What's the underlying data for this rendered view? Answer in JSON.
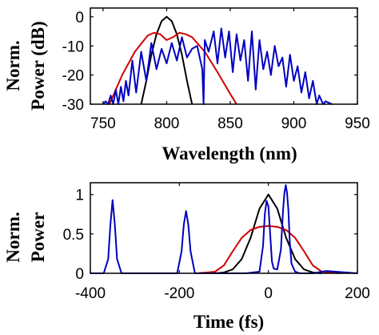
{
  "chart_data": [
    {
      "type": "line",
      "xlabel": "Wavelength (nm)",
      "ylabel_lines": [
        "Norm.",
        "Power (dB)"
      ],
      "xlim": [
        740,
        950
      ],
      "ylim": [
        -30,
        3
      ],
      "xticks": [
        750,
        800,
        850,
        900,
        950
      ],
      "yticks": [
        0,
        -10,
        -20,
        -30
      ],
      "grid": false,
      "series": [
        {
          "color": "#000000",
          "x": [
            780,
            784,
            788,
            792,
            796,
            800,
            804,
            808,
            812,
            816,
            820
          ],
          "y": [
            -30,
            -22,
            -13,
            -6,
            -1.5,
            0,
            -1.5,
            -6,
            -13,
            -22,
            -30
          ]
        },
        {
          "color": "#d00000",
          "x": [
            755,
            765,
            775,
            785,
            790,
            795,
            800,
            805,
            810,
            815,
            820,
            830,
            840,
            850,
            855
          ],
          "y": [
            -30,
            -20,
            -12,
            -6.5,
            -5.5,
            -6,
            -8,
            -7,
            -5.5,
            -6,
            -7,
            -12,
            -19,
            -26.5,
            -30
          ]
        },
        {
          "color": "#0000c0",
          "x": [
            750,
            752,
            754,
            756,
            758,
            760,
            762,
            764,
            766,
            768,
            770,
            773,
            776,
            780,
            784,
            788,
            792,
            796,
            800,
            804,
            808,
            812,
            816,
            820,
            824,
            828,
            829,
            830,
            833,
            837,
            840,
            843,
            846,
            849,
            852,
            855,
            858,
            861,
            864,
            867,
            870,
            873,
            876,
            879,
            882,
            885,
            888,
            891,
            894,
            897,
            900,
            903,
            906,
            909,
            912,
            915,
            918,
            920,
            923,
            925,
            930
          ],
          "y": [
            -30,
            -29,
            -30,
            -27,
            -30,
            -25,
            -30,
            -24,
            -29,
            -22,
            -27,
            -15,
            -26,
            -12,
            -22,
            -9,
            -18,
            -11,
            -16,
            -9,
            -15,
            -7,
            -14,
            -11,
            -10,
            -18,
            -30,
            -8,
            -12,
            -5,
            -16,
            -4,
            -14,
            -5,
            -19,
            -6,
            -15,
            -8,
            -22,
            -5,
            -25,
            -8,
            -18,
            -12,
            -20,
            -10,
            -17,
            -14,
            -24,
            -13,
            -22,
            -17,
            -26,
            -19,
            -28,
            -22,
            -30,
            -27,
            -30,
            -29,
            -30
          ]
        }
      ]
    },
    {
      "type": "line",
      "xlabel": "Time (fs)",
      "ylabel_lines": [
        "Norm.",
        "Power"
      ],
      "xlim": [
        -400,
        200
      ],
      "ylim": [
        0,
        1.15
      ],
      "xticks": [
        -400,
        -200,
        0,
        200
      ],
      "yticks": [
        1,
        0.5,
        0
      ],
      "grid": false,
      "series": [
        {
          "color": "#000000",
          "x": [
            -120,
            -100,
            -80,
            -60,
            -40,
            -20,
            0,
            20,
            40,
            60,
            80,
            100,
            120
          ],
          "y": [
            0,
            0.01,
            0.05,
            0.18,
            0.45,
            0.82,
            1.0,
            0.82,
            0.45,
            0.18,
            0.05,
            0.01,
            0
          ]
        },
        {
          "color": "#d00000",
          "x": [
            -160,
            -120,
            -100,
            -80,
            -60,
            -40,
            -20,
            0,
            20,
            40,
            60,
            80,
            100,
            120,
            160
          ],
          "y": [
            0,
            0.02,
            0.1,
            0.28,
            0.45,
            0.55,
            0.59,
            0.6,
            0.59,
            0.55,
            0.45,
            0.28,
            0.1,
            0.02,
            0
          ]
        },
        {
          "color": "#0000c0",
          "x": [
            -400,
            -370,
            -360,
            -355,
            -350,
            -345,
            -340,
            -330,
            -300,
            -250,
            -205,
            -195,
            -190,
            -185,
            -180,
            -175,
            -165,
            -140,
            -100,
            -50,
            -20,
            -12,
            -8,
            -4,
            0,
            4,
            8,
            12,
            20,
            28,
            33,
            36,
            39,
            42,
            45,
            48,
            52,
            60,
            70,
            80,
            100,
            130,
            200
          ],
          "y": [
            0,
            0,
            0.18,
            0.62,
            0.93,
            0.62,
            0.18,
            0,
            0,
            0,
            0,
            0.28,
            0.62,
            0.79,
            0.62,
            0.28,
            0,
            0,
            0,
            0,
            0.02,
            0.35,
            0.75,
            0.92,
            0.85,
            0.5,
            0.15,
            0.06,
            0.05,
            0.3,
            0.8,
            1.02,
            1.12,
            1.02,
            0.8,
            0.4,
            0.12,
            0.02,
            0,
            0,
            0,
            0.03,
            0
          ]
        }
      ]
    }
  ]
}
